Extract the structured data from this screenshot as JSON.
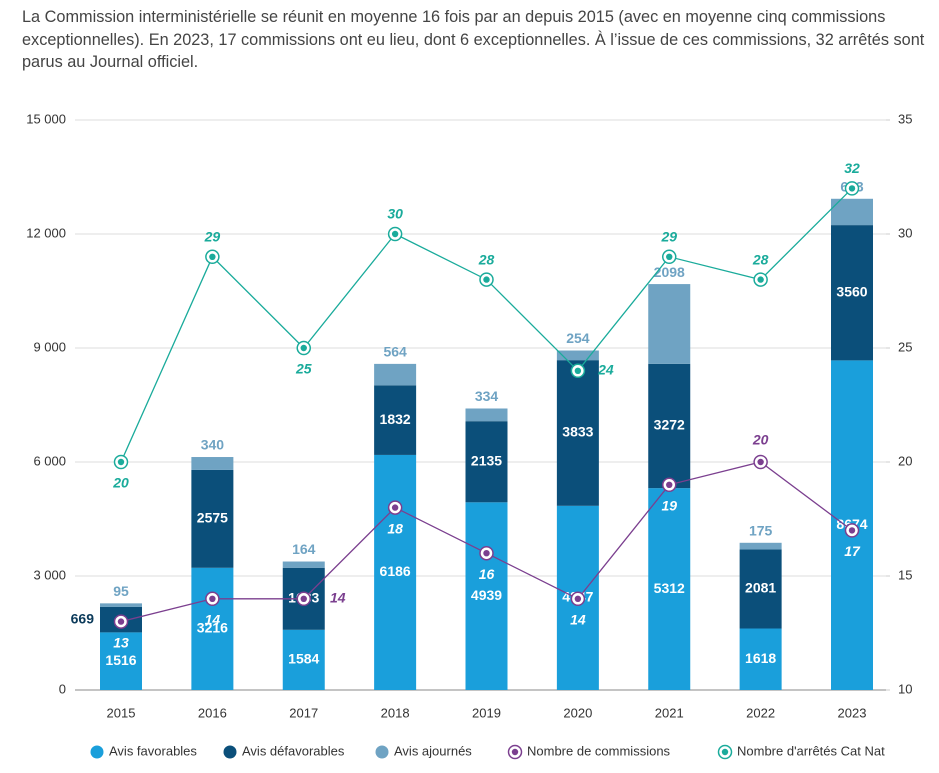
{
  "intro": "La Commission interministérielle se réunit en moyenne 16 fois par an depuis 2015 (avec en moyenne cinq commissions exceptionnelles). En 2023, 17 commissions ont eu lieu, dont 6 exceptionnelles. À l’issue de ces commissions, 32 arrêtés sont parus au Journal officiel.",
  "chart_data": {
    "type": "combo",
    "stacked": true,
    "grid": true,
    "legend": "bottom",
    "categories": [
      "2015",
      "2016",
      "2017",
      "2018",
      "2019",
      "2020",
      "2021",
      "2022",
      "2023"
    ],
    "ylim": [
      0,
      15000
    ],
    "yticks": [
      0,
      {
        "value": 3000,
        "label": "3 000"
      },
      {
        "value": 6000,
        "label": "6 000"
      },
      {
        "value": 9000,
        "label": "9 000"
      },
      {
        "value": 12000,
        "label": "12 000"
      },
      {
        "value": 15000,
        "label": "15 000"
      }
    ],
    "y2lim": [
      10,
      35
    ],
    "y2ticks": [
      10,
      15,
      20,
      25,
      30,
      35
    ],
    "series": [
      {
        "name": "Avis favorables",
        "type": "bar",
        "color": "#1a9fdb",
        "values": [
          1516,
          3216,
          1584,
          6186,
          4939,
          4847,
          5312,
          1618,
          8674
        ]
      },
      {
        "name": "Avis défavorables",
        "type": "bar",
        "color": "#0b4f7a",
        "values": [
          669,
          2575,
          1633,
          1832,
          2135,
          3833,
          3272,
          2081,
          3560
        ]
      },
      {
        "name": "Avis ajournés",
        "type": "bar",
        "color": "#6fa3c3",
        "values": [
          95,
          340,
          164,
          564,
          334,
          254,
          2098,
          175,
          693
        ]
      },
      {
        "name": "Nombre de commissions",
        "type": "line",
        "axis": "y2",
        "color": "#7b3f8f",
        "values": [
          13,
          14,
          14,
          18,
          16,
          14,
          19,
          20,
          17
        ]
      },
      {
        "name": "Nombre d'arrêtés Cat Nat",
        "type": "line",
        "axis": "y2",
        "color": "#1aab9b",
        "values": [
          20,
          29,
          25,
          30,
          28,
          24,
          29,
          28,
          32
        ]
      }
    ]
  }
}
